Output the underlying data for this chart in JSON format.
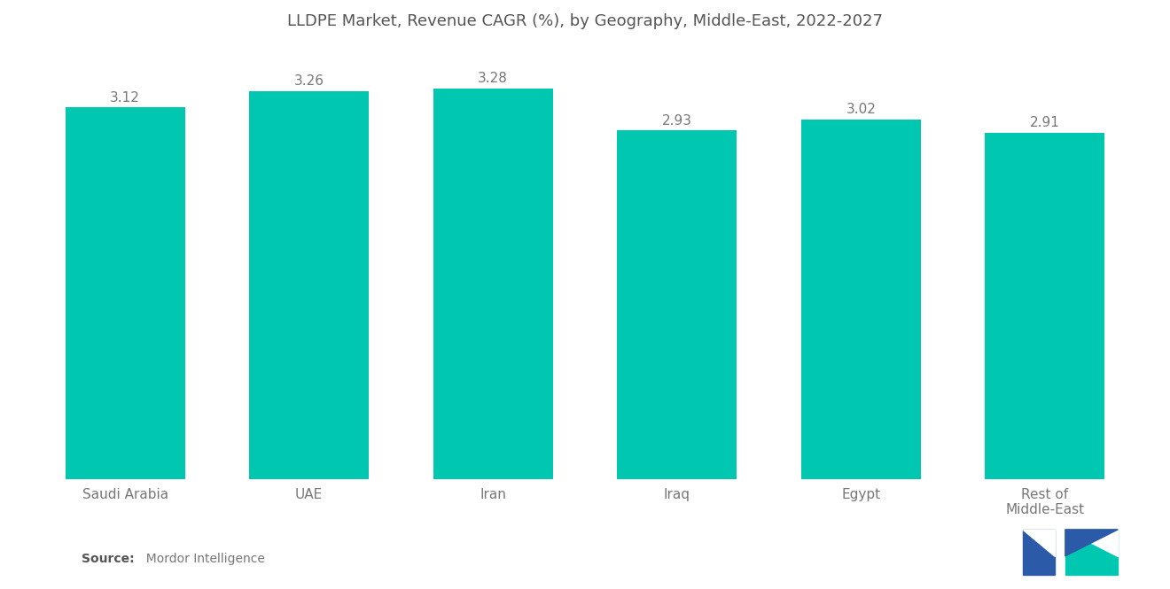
{
  "title": "LLDPE Market, Revenue CAGR (%), by Geography, Middle-East, 2022-2027",
  "categories": [
    "Saudi Arabia",
    "UAE",
    "Iran",
    "Iraq",
    "Egypt",
    "Rest of\nMiddle-East"
  ],
  "values": [
    3.12,
    3.26,
    3.28,
    2.93,
    3.02,
    2.91
  ],
  "bar_color": "#00C8B0",
  "background_color": "#ffffff",
  "title_fontsize": 13,
  "label_fontsize": 11,
  "value_fontsize": 11,
  "source_bold": "Source:",
  "source_normal": "  Mordor Intelligence",
  "ylim": [
    0,
    3.6
  ],
  "bar_width": 0.65,
  "title_color": "#555555",
  "label_color": "#777777",
  "value_color": "#777777"
}
